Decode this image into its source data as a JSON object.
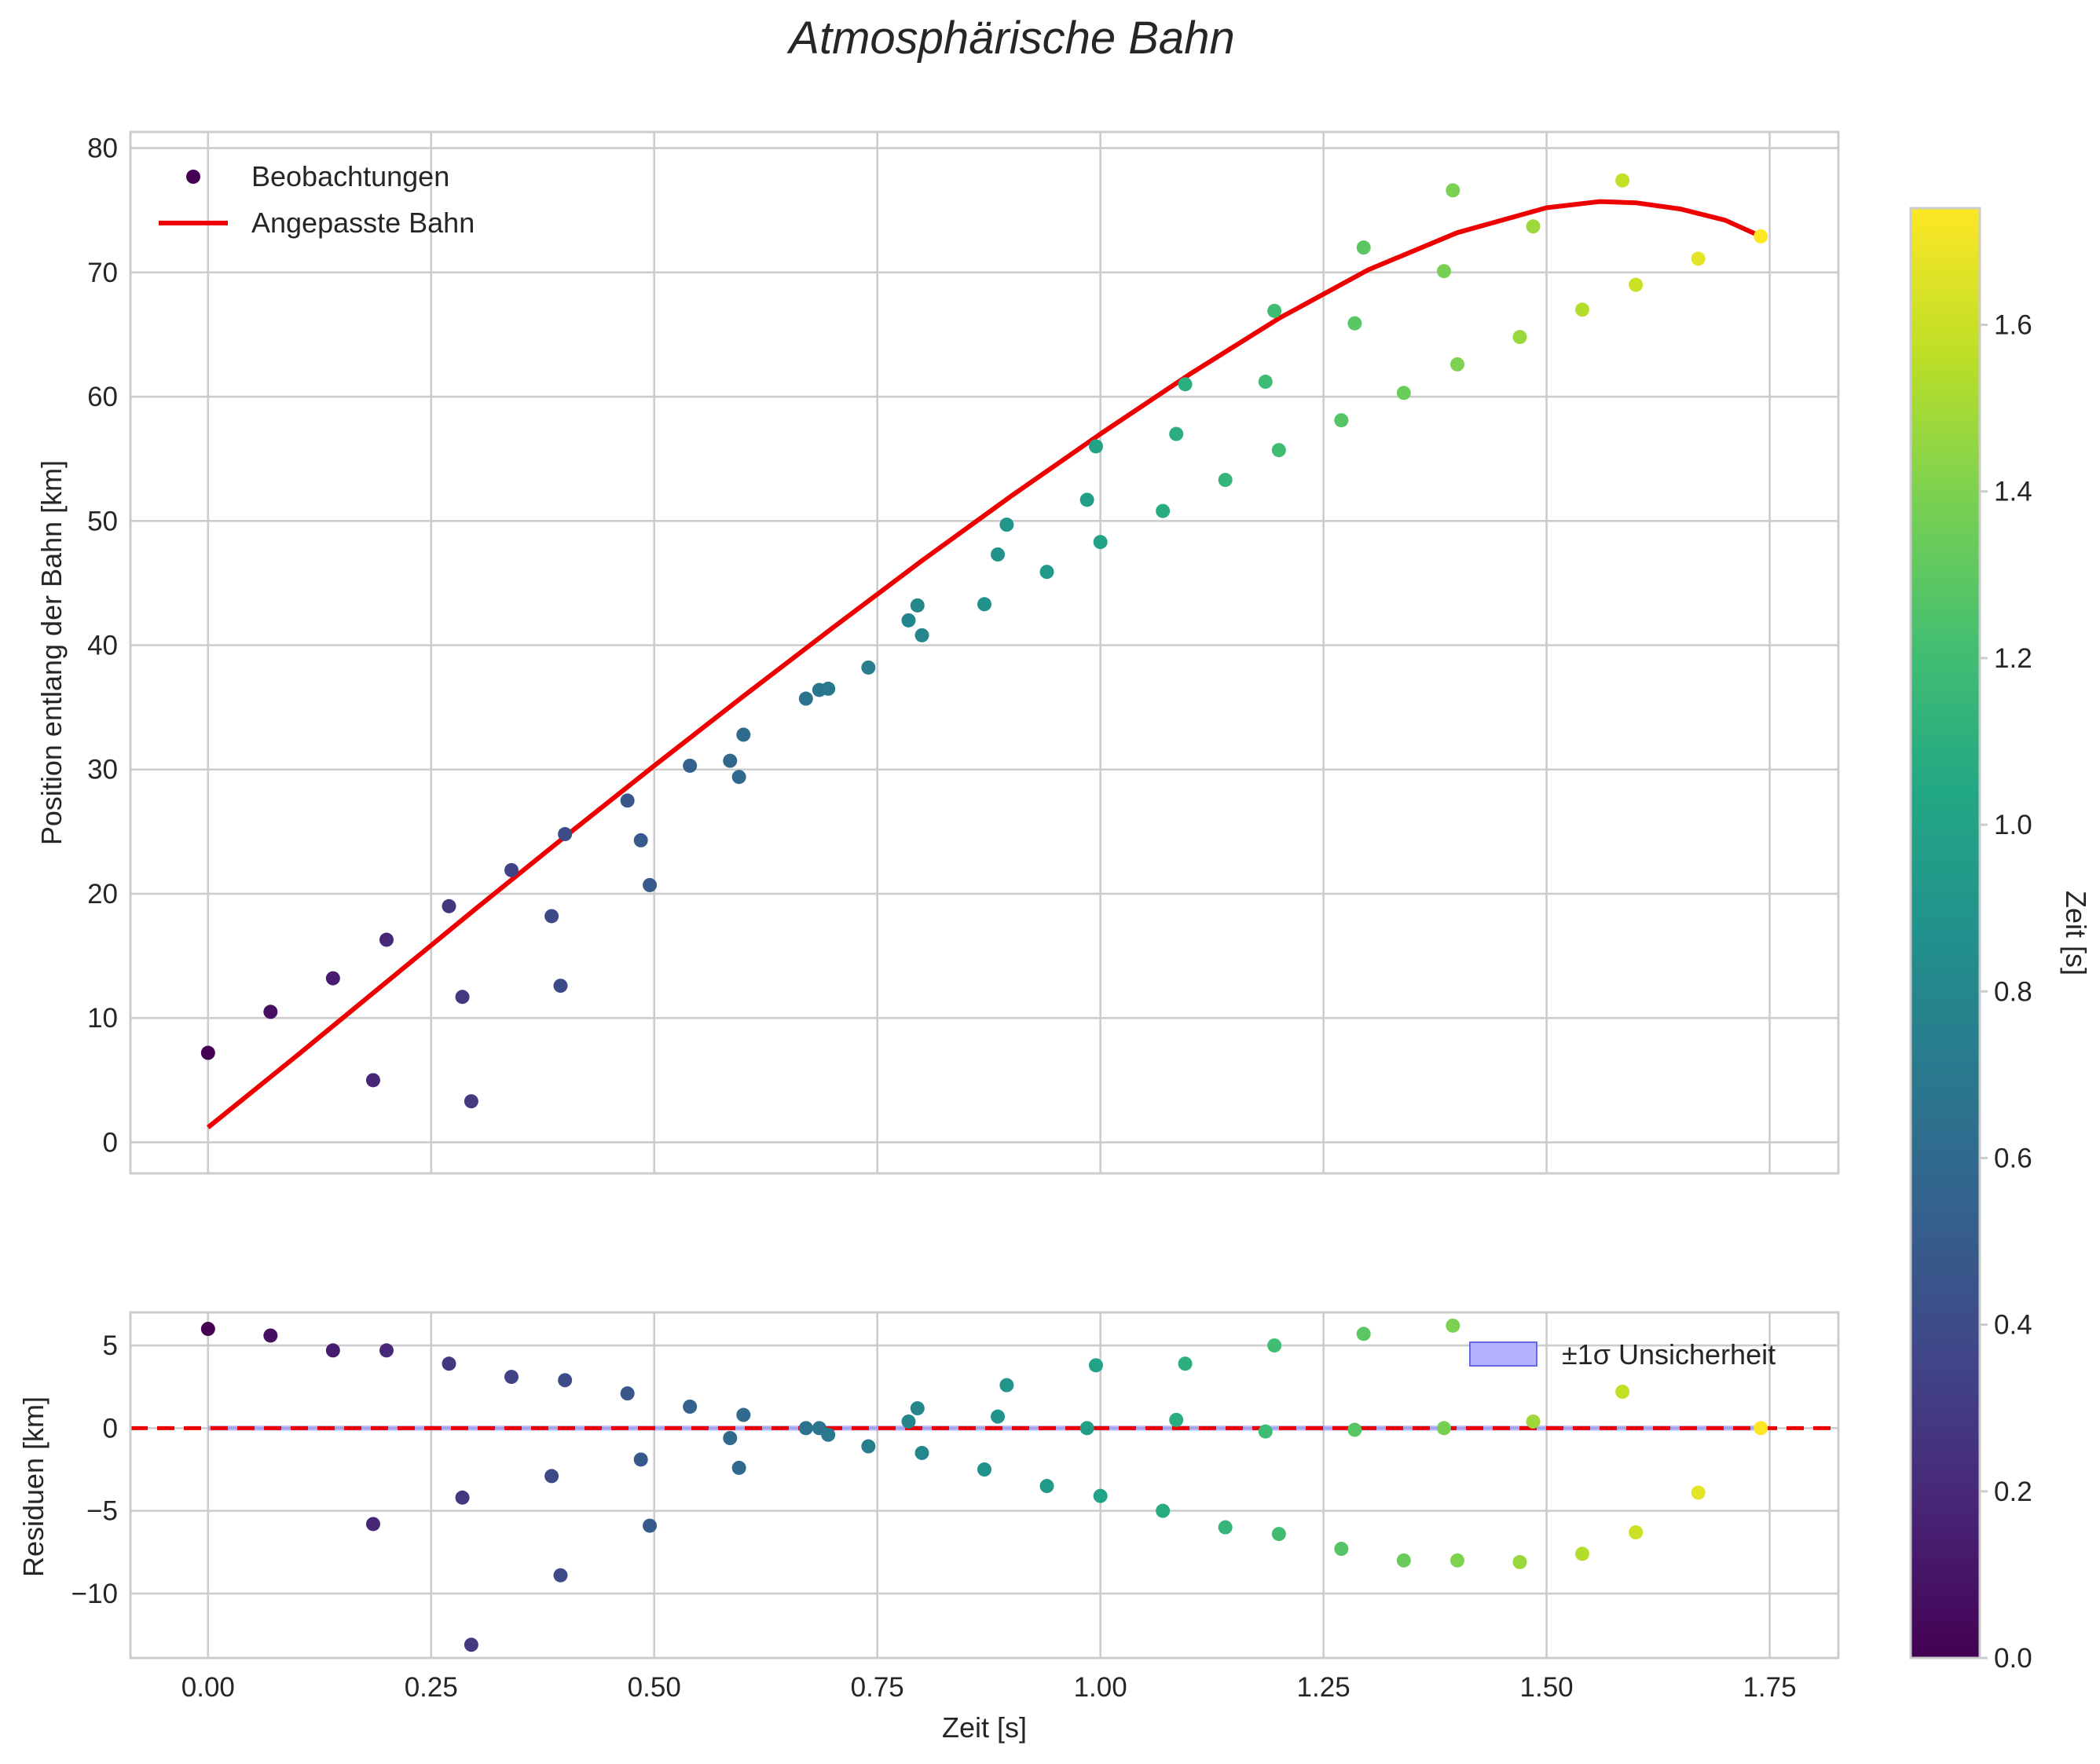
{
  "chart_data": {
    "type": "scatter",
    "title": "Atmosphärische Bahn",
    "colormap": "viridis",
    "panels": [
      {
        "name": "main",
        "ylabel": "Position entlang der Bahn [km]",
        "xlabel": "",
        "xlim": [
          -0.087,
          1.827
        ],
        "ylim": [
          -2.5,
          81.3
        ],
        "xticks": [
          0.0,
          0.25,
          0.5,
          0.75,
          1.0,
          1.25,
          1.5,
          1.75
        ],
        "yticks": [
          0,
          10,
          20,
          30,
          40,
          50,
          60,
          70,
          80
        ],
        "ytick_labels": [
          "0",
          "10",
          "20",
          "30",
          "40",
          "50",
          "60",
          "70",
          "80"
        ],
        "legend": {
          "position": "top-left",
          "entries": [
            {
              "label": "Beobachtungen",
              "kind": "scatter",
              "color": "#440154"
            },
            {
              "label": "Angepasste Bahn",
              "kind": "line",
              "color": "#ee0000"
            }
          ]
        },
        "series": [
          {
            "name": "Beobachtungen",
            "kind": "scatter",
            "points": [
              [
                0.0,
                7.2
              ],
              [
                0.07,
                10.5
              ],
              [
                0.14,
                13.2
              ],
              [
                0.185,
                5.0
              ],
              [
                0.2,
                16.3
              ],
              [
                0.27,
                19.0
              ],
              [
                0.285,
                11.7
              ],
              [
                0.295,
                3.3
              ],
              [
                0.34,
                21.9
              ],
              [
                0.385,
                18.2
              ],
              [
                0.395,
                12.6
              ],
              [
                0.4,
                24.8
              ],
              [
                0.47,
                27.5
              ],
              [
                0.485,
                24.3
              ],
              [
                0.495,
                20.7
              ],
              [
                0.54,
                30.3
              ],
              [
                0.585,
                30.7
              ],
              [
                0.595,
                29.4
              ],
              [
                0.6,
                32.8
              ],
              [
                0.67,
                35.7
              ],
              [
                0.685,
                36.4
              ],
              [
                0.695,
                36.5
              ],
              [
                0.74,
                38.2
              ],
              [
                0.785,
                42.0
              ],
              [
                0.795,
                43.2
              ],
              [
                0.8,
                40.8
              ],
              [
                0.87,
                43.3
              ],
              [
                0.885,
                47.3
              ],
              [
                0.895,
                49.7
              ],
              [
                0.94,
                45.9
              ],
              [
                0.985,
                51.7
              ],
              [
                0.995,
                56.0
              ],
              [
                1.0,
                48.3
              ],
              [
                1.07,
                50.8
              ],
              [
                1.085,
                57.0
              ],
              [
                1.095,
                61.0
              ],
              [
                1.14,
                53.3
              ],
              [
                1.185,
                61.2
              ],
              [
                1.195,
                66.9
              ],
              [
                1.2,
                55.7
              ],
              [
                1.27,
                58.1
              ],
              [
                1.285,
                65.9
              ],
              [
                1.295,
                72.0
              ],
              [
                1.34,
                60.3
              ],
              [
                1.385,
                70.1
              ],
              [
                1.395,
                76.6
              ],
              [
                1.4,
                62.6
              ],
              [
                1.47,
                64.8
              ],
              [
                1.485,
                73.7
              ],
              [
                1.54,
                67.0
              ],
              [
                1.585,
                77.4
              ],
              [
                1.6,
                69.0
              ],
              [
                1.67,
                71.1
              ],
              [
                1.74,
                72.9
              ]
            ]
          },
          {
            "name": "Angepasste Bahn",
            "kind": "line",
            "color": "#ee0000",
            "points": [
              [
                0.0,
                1.2
              ],
              [
                0.1,
                7.0
              ],
              [
                0.2,
                12.9
              ],
              [
                0.3,
                18.8
              ],
              [
                0.4,
                24.6
              ],
              [
                0.5,
                30.3
              ],
              [
                0.6,
                35.9
              ],
              [
                0.7,
                41.4
              ],
              [
                0.8,
                46.8
              ],
              [
                0.9,
                52.0
              ],
              [
                1.0,
                57.0
              ],
              [
                1.1,
                61.8
              ],
              [
                1.2,
                66.3
              ],
              [
                1.3,
                70.2
              ],
              [
                1.4,
                73.2
              ],
              [
                1.5,
                75.2
              ],
              [
                1.56,
                75.7
              ],
              [
                1.6,
                75.6
              ],
              [
                1.65,
                75.1
              ],
              [
                1.7,
                74.2
              ],
              [
                1.74,
                72.9
              ]
            ]
          }
        ]
      },
      {
        "name": "residuals",
        "ylabel": "Residuen [km]",
        "xlabel": "Zeit [s]",
        "xlim": [
          -0.087,
          1.827
        ],
        "ylim": [
          -13.9,
          7.0
        ],
        "xticks": [
          0.0,
          0.25,
          0.5,
          0.75,
          1.0,
          1.25,
          1.5,
          1.75
        ],
        "xtick_labels": [
          "0.00",
          "0.25",
          "0.50",
          "0.75",
          "1.00",
          "1.25",
          "1.50",
          "1.75"
        ],
        "yticks": [
          5,
          0,
          -5,
          -10
        ],
        "ytick_labels": [
          "5",
          "0",
          "−5",
          "−10"
        ],
        "reference_line": {
          "y": 0,
          "color": "#ee0000",
          "style": "dashed"
        },
        "uncertainty_band": {
          "label": "±1σ Unsicherheit",
          "color": "#8080ff",
          "lower": -0.15,
          "upper": 0.15,
          "x_range": [
            0.0,
            1.74
          ]
        },
        "legend": {
          "position": "top-right",
          "entries": [
            {
              "label": "±1σ Unsicherheit",
              "kind": "patch",
              "color": "#b3b3ff"
            }
          ]
        },
        "series": [
          {
            "name": "Residuen",
            "kind": "scatter",
            "points": [
              [
                0.0,
                6.0
              ],
              [
                0.07,
                5.6
              ],
              [
                0.14,
                4.7
              ],
              [
                0.185,
                -5.8
              ],
              [
                0.2,
                4.7
              ],
              [
                0.27,
                3.9
              ],
              [
                0.285,
                -4.2
              ],
              [
                0.295,
                -13.1
              ],
              [
                0.34,
                3.1
              ],
              [
                0.385,
                -2.9
              ],
              [
                0.395,
                -8.9
              ],
              [
                0.4,
                2.9
              ],
              [
                0.47,
                2.1
              ],
              [
                0.485,
                -1.9
              ],
              [
                0.495,
                -5.9
              ],
              [
                0.54,
                1.3
              ],
              [
                0.585,
                -0.6
              ],
              [
                0.595,
                -2.4
              ],
              [
                0.6,
                0.8
              ],
              [
                0.67,
                0.0
              ],
              [
                0.685,
                0.0
              ],
              [
                0.695,
                -0.4
              ],
              [
                0.74,
                -1.1
              ],
              [
                0.785,
                0.4
              ],
              [
                0.795,
                1.2
              ],
              [
                0.8,
                -1.5
              ],
              [
                0.87,
                -2.5
              ],
              [
                0.885,
                0.7
              ],
              [
                0.895,
                2.6
              ],
              [
                0.94,
                -3.5
              ],
              [
                0.985,
                0.0
              ],
              [
                0.995,
                3.8
              ],
              [
                1.0,
                -4.1
              ],
              [
                1.07,
                -5.0
              ],
              [
                1.085,
                0.5
              ],
              [
                1.095,
                3.9
              ],
              [
                1.14,
                -6.0
              ],
              [
                1.185,
                -0.2
              ],
              [
                1.195,
                5.0
              ],
              [
                1.2,
                -6.4
              ],
              [
                1.27,
                -7.3
              ],
              [
                1.285,
                -0.1
              ],
              [
                1.295,
                5.7
              ],
              [
                1.34,
                -8.0
              ],
              [
                1.385,
                0.0
              ],
              [
                1.395,
                6.2
              ],
              [
                1.4,
                -8.0
              ],
              [
                1.47,
                -8.1
              ],
              [
                1.485,
                0.4
              ],
              [
                1.54,
                -7.6
              ],
              [
                1.585,
                2.2
              ],
              [
                1.6,
                -6.3
              ],
              [
                1.67,
                -3.9
              ],
              [
                1.74,
                0.0
              ]
            ]
          }
        ]
      }
    ],
    "colorbar": {
      "label": "Zeit [s]",
      "range": [
        0.0,
        1.74
      ],
      "ticks": [
        0.0,
        0.2,
        0.4,
        0.6,
        0.8,
        1.0,
        1.2,
        1.4,
        1.6
      ],
      "tick_labels": [
        "0.0",
        "0.2",
        "0.4",
        "0.6",
        "0.8",
        "1.0",
        "1.2",
        "1.4",
        "1.6"
      ]
    }
  }
}
